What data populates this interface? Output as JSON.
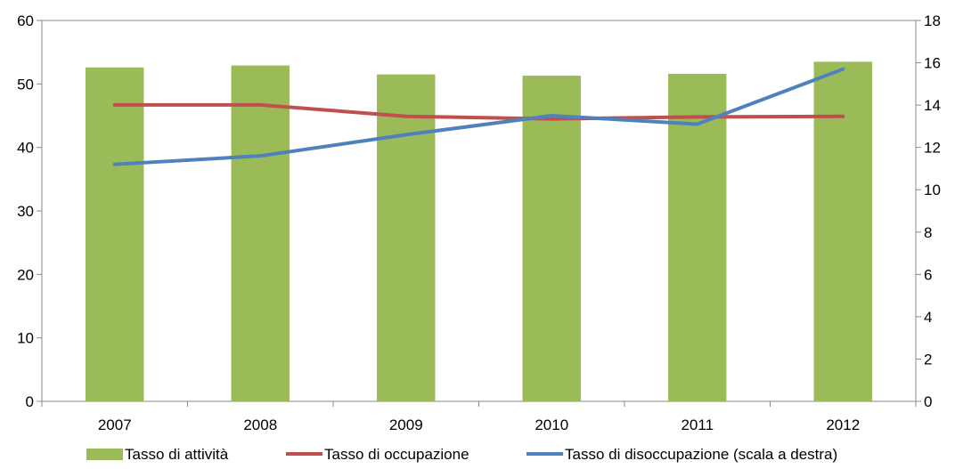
{
  "chart_data": {
    "type": "bar",
    "categories": [
      "2007",
      "2008",
      "2009",
      "2010",
      "2011",
      "2012"
    ],
    "series": [
      {
        "name": "Tasso di attività",
        "type": "bar",
        "axis": "left",
        "color": "#9BBB59",
        "values": [
          52.6,
          52.9,
          51.5,
          51.3,
          51.6,
          53.5
        ]
      },
      {
        "name": "Tasso di occupazione",
        "type": "line",
        "axis": "left",
        "color": "#C0504D",
        "values": [
          46.7,
          46.7,
          44.9,
          44.5,
          44.8,
          44.9
        ]
      },
      {
        "name": "Tasso di disoccupazione (scala a destra)",
        "type": "line",
        "axis": "right",
        "color": "#4F81BD",
        "values": [
          11.2,
          11.6,
          12.6,
          13.5,
          13.1,
          15.7
        ]
      }
    ],
    "y_left": {
      "min": 0,
      "max": 60,
      "ticks": [
        "0",
        "10",
        "20",
        "30",
        "40",
        "50",
        "60"
      ]
    },
    "y_right": {
      "min": 0,
      "max": 18,
      "ticks": [
        "0",
        "2",
        "4",
        "6",
        "8",
        "10",
        "12",
        "14",
        "16",
        "18"
      ]
    },
    "grid": false,
    "legend": "bottom"
  }
}
